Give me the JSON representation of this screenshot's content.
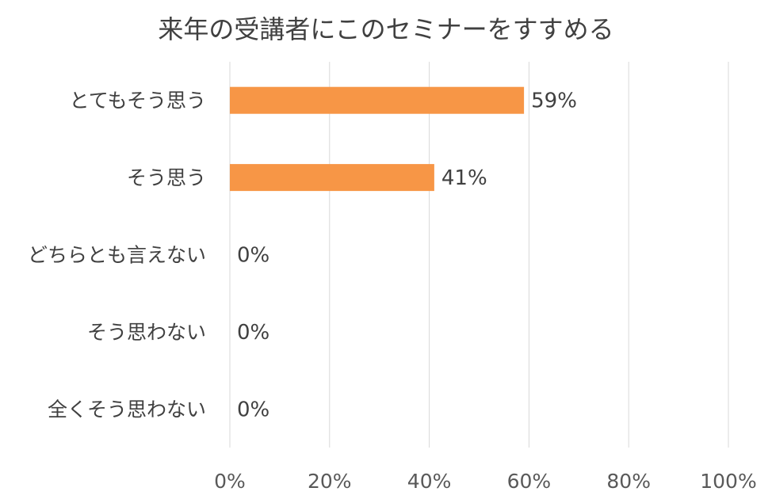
{
  "chart_data": {
    "type": "bar",
    "orientation": "horizontal",
    "title": "来年の受講者にこのセミナーをすすめる",
    "categories": [
      "とてもそう思う",
      "そう思う",
      "どちらとも言えない",
      "そう思わない",
      "全くそう思わない"
    ],
    "values": [
      59,
      41,
      0,
      0,
      0
    ],
    "data_labels": [
      "59%",
      "41%",
      "0%",
      "0%",
      "0%"
    ],
    "xlim": [
      0,
      100
    ],
    "x_ticks": [
      0,
      20,
      40,
      60,
      80,
      100
    ],
    "x_tick_labels": [
      "0%",
      "20%",
      "40%",
      "60%",
      "80%",
      "100%"
    ],
    "xlabel": "",
    "ylabel": "",
    "grid": true,
    "legend": "none",
    "bar_color": "#f79646"
  }
}
